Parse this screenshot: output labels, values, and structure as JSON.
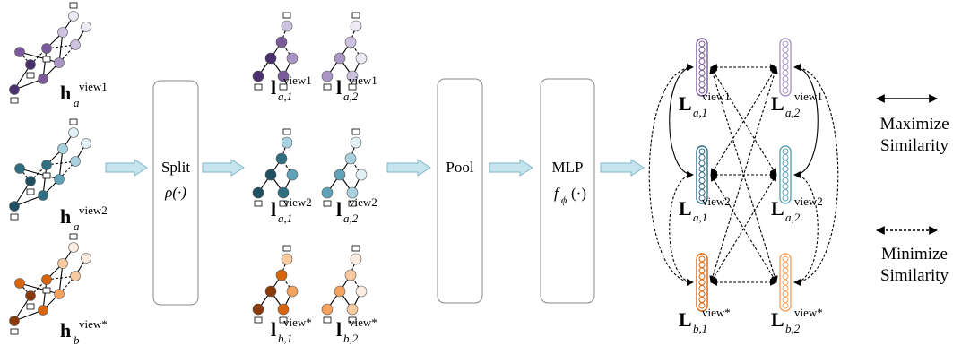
{
  "colors": {
    "purple": [
      "#4b3070",
      "#7a5a9a",
      "#a996c4",
      "#cdc2e0",
      "#eeeaf5"
    ],
    "teal": [
      "#1f4f60",
      "#2f6f82",
      "#5fa3b8",
      "#a9d2e0",
      "#e2f1f6"
    ],
    "orange": [
      "#8a3a08",
      "#d8640c",
      "#f5a25f",
      "#f9c9a0",
      "#fdece0"
    ],
    "arrow_fill": "#c5e4ee",
    "arrow_stroke": "#7fb6c8",
    "box_stroke": "#888888"
  },
  "inputs": [
    {
      "symbol": "h",
      "sub": "a",
      "sup": "view1",
      "palette": "purple"
    },
    {
      "symbol": "h",
      "sub": "a",
      "sup": "view2",
      "palette": "teal"
    },
    {
      "symbol": "h",
      "sub": "b",
      "sup": "view*",
      "palette": "orange"
    }
  ],
  "split_box": {
    "title": "Split",
    "func": "ρ(·)"
  },
  "split_outputs": [
    [
      {
        "symbol": "l",
        "sub": "a,1",
        "sup": "view1"
      },
      {
        "symbol": "l",
        "sub": "a,2",
        "sup": "view1"
      }
    ],
    [
      {
        "symbol": "l",
        "sub": "a,1",
        "sup": "view2"
      },
      {
        "symbol": "l",
        "sub": "a,2",
        "sup": "view2"
      }
    ],
    [
      {
        "symbol": "l",
        "sub": "b,1",
        "sup": "view*"
      },
      {
        "symbol": "l",
        "sub": "b,2",
        "sup": "view*"
      }
    ]
  ],
  "pool_box": {
    "title": "Pool"
  },
  "mlp_box": {
    "title": "MLP",
    "func": "f",
    "func_sub": "ϕ",
    "func_arg": "(·)"
  },
  "embeddings": [
    [
      {
        "symbol": "L",
        "sub": "a,1",
        "sup": "view1"
      },
      {
        "symbol": "L",
        "sub": "a,2",
        "sup": "view1"
      }
    ],
    [
      {
        "symbol": "L",
        "sub": "a,1",
        "sup": "view2"
      },
      {
        "symbol": "L",
        "sub": "a,2",
        "sup": "view2"
      }
    ],
    [
      {
        "symbol": "L",
        "sub": "b,1",
        "sup": "view*"
      },
      {
        "symbol": "L",
        "sub": "b,2",
        "sup": "view*"
      }
    ]
  ],
  "legend": {
    "maximize": [
      "Maximize",
      "Similarity"
    ],
    "minimize": [
      "Minimize",
      "Similarity"
    ]
  }
}
